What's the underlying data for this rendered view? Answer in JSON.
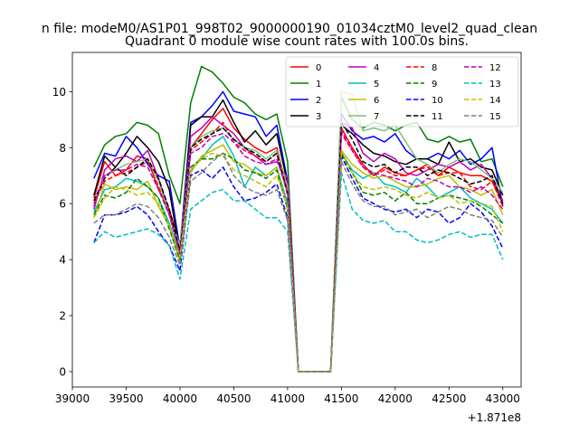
{
  "chart_data": {
    "type": "line",
    "suptitle": "n file: modeM0/AS1P01_998T02_9000000190_01034cztM0_level2_quad_clean",
    "title": "Quadrant 0 module wise count rates with 100.0s bins.",
    "xlabel": "",
    "ylabel": "",
    "offset_text": "+1.871e8",
    "xlim": [
      39000,
      43170
    ],
    "ylim": [
      -0.55,
      11.4
    ],
    "x_ticks": [
      39000,
      39500,
      40000,
      40500,
      41000,
      41500,
      42000,
      42500,
      43000
    ],
    "x_tick_labels": [
      "39000",
      "39500",
      "40000",
      "40500",
      "41000",
      "41500",
      "42000",
      "42500",
      "43000"
    ],
    "y_ticks": [
      0,
      2,
      4,
      6,
      8,
      10
    ],
    "y_tick_labels": [
      "0",
      "2",
      "4",
      "6",
      "8",
      "10"
    ],
    "grid": false,
    "legend_position": "upper-right",
    "legend_columns": 4,
    "x": [
      39200,
      39300,
      39400,
      39500,
      39600,
      39700,
      39800,
      39900,
      40000,
      40100,
      40200,
      40300,
      40400,
      40500,
      40600,
      40700,
      40800,
      40900,
      41000,
      41100,
      41200,
      41300,
      41400,
      41500,
      41600,
      41700,
      41800,
      41900,
      42000,
      42100,
      42200,
      42300,
      42400,
      42500,
      42600,
      42700,
      42800,
      42900,
      43000
    ],
    "series": [
      {
        "name": "0",
        "color": "#ff0000",
        "dash": "solid",
        "values": [
          6.2,
          7.5,
          7.0,
          7.2,
          7.7,
          7.6,
          6.5,
          5.8,
          4.5,
          8.0,
          8.5,
          9.0,
          9.4,
          8.7,
          8.3,
          8.0,
          7.8,
          8.0,
          6.5,
          0,
          0,
          0,
          0,
          8.7,
          8.0,
          7.4,
          7.0,
          7.3,
          7.1,
          7.0,
          7.2,
          7.4,
          7.0,
          7.3,
          7.1,
          7.0,
          7.0,
          6.8,
          6.0
        ]
      },
      {
        "name": "1",
        "color": "#008000",
        "dash": "solid",
        "values": [
          7.3,
          8.1,
          8.4,
          8.5,
          8.9,
          8.8,
          8.5,
          7.0,
          6.0,
          9.6,
          10.9,
          10.7,
          10.3,
          9.8,
          9.6,
          9.2,
          9.0,
          9.2,
          7.5,
          0,
          0,
          0,
          0,
          9.8,
          9.0,
          8.7,
          8.9,
          8.8,
          8.6,
          8.8,
          8.9,
          8.3,
          8.2,
          8.4,
          8.2,
          8.3,
          7.5,
          7.6,
          6.6
        ]
      },
      {
        "name": "2",
        "color": "#0000ff",
        "dash": "solid",
        "values": [
          6.9,
          7.8,
          7.7,
          8.4,
          8.0,
          7.4,
          7.0,
          6.8,
          4.4,
          8.9,
          9.1,
          9.5,
          10.0,
          9.3,
          9.2,
          9.1,
          8.4,
          8.8,
          6.8,
          0,
          0,
          0,
          0,
          9.2,
          8.6,
          8.3,
          8.4,
          8.2,
          8.5,
          7.9,
          7.6,
          7.6,
          7.8,
          7.6,
          7.9,
          7.4,
          7.6,
          8.0,
          5.9
        ]
      },
      {
        "name": "3",
        "color": "#000000",
        "dash": "solid",
        "values": [
          6.3,
          7.7,
          7.3,
          7.8,
          8.4,
          8.0,
          7.5,
          6.5,
          4.2,
          8.8,
          9.1,
          9.1,
          9.7,
          8.9,
          8.2,
          8.6,
          8.1,
          8.5,
          6.7,
          0,
          0,
          0,
          0,
          8.8,
          8.5,
          8.1,
          7.8,
          7.7,
          7.5,
          7.4,
          7.6,
          7.6,
          7.4,
          8.2,
          7.5,
          7.6,
          7.3,
          7.2,
          6.3
        ]
      },
      {
        "name": "4",
        "color": "#bf00bf",
        "dash": "solid",
        "values": [
          5.8,
          7.2,
          7.6,
          7.7,
          7.5,
          7.9,
          6.9,
          5.7,
          4.3,
          8.4,
          8.7,
          9.1,
          8.8,
          8.5,
          8.0,
          7.7,
          7.4,
          7.5,
          6.9,
          0,
          0,
          0,
          0,
          8.9,
          8.7,
          7.8,
          7.5,
          7.8,
          7.6,
          7.1,
          7.0,
          7.2,
          7.4,
          7.3,
          7.5,
          7.2,
          7.4,
          6.9,
          6.1
        ]
      },
      {
        "name": "5",
        "color": "#00bfbf",
        "dash": "solid",
        "values": [
          5.7,
          6.5,
          6.6,
          6.9,
          6.8,
          6.6,
          6.2,
          5.3,
          4.1,
          7.2,
          7.6,
          8.1,
          8.4,
          7.7,
          6.6,
          7.3,
          7.0,
          7.3,
          6.0,
          0,
          0,
          0,
          0,
          7.8,
          7.2,
          6.9,
          7.1,
          6.7,
          6.6,
          6.4,
          6.9,
          6.6,
          6.2,
          6.4,
          6.6,
          6.2,
          6.0,
          5.8,
          5.3
        ]
      },
      {
        "name": "6",
        "color": "#bfbf00",
        "dash": "solid",
        "values": [
          5.5,
          6.7,
          6.5,
          6.6,
          6.5,
          6.8,
          5.9,
          5.2,
          3.9,
          7.1,
          7.7,
          7.9,
          8.1,
          7.5,
          7.4,
          7.1,
          7.0,
          7.3,
          5.8,
          0,
          0,
          0,
          0,
          7.9,
          7.4,
          7.1,
          6.9,
          7.0,
          6.8,
          6.6,
          6.6,
          6.7,
          6.9,
          7.0,
          6.6,
          6.5,
          6.3,
          6.5,
          5.6
        ]
      },
      {
        "name": "7",
        "color": "#80bf80",
        "dash": "solid",
        "values": [
          6.1,
          7.0,
          7.2,
          7.4,
          7.5,
          7.6,
          6.8,
          5.6,
          4.5,
          8.0,
          8.4,
          8.6,
          8.7,
          8.3,
          8.0,
          7.9,
          7.6,
          7.9,
          6.6,
          0,
          0,
          0,
          0,
          10.0,
          9.9,
          8.6,
          8.7,
          8.6,
          8.8,
          8.2,
          7.6,
          7.4,
          7.1,
          7.4,
          7.6,
          7.5,
          7.2,
          6.9,
          6.4
        ]
      },
      {
        "name": "8",
        "color": "#ff0000",
        "dash": "dashed",
        "values": [
          6.0,
          6.8,
          7.0,
          7.1,
          7.3,
          7.5,
          6.6,
          5.6,
          4.2,
          7.9,
          8.2,
          8.5,
          8.9,
          8.2,
          7.9,
          7.7,
          7.5,
          7.8,
          6.3,
          0,
          0,
          0,
          0,
          8.5,
          7.9,
          7.3,
          7.0,
          7.2,
          7.0,
          7.0,
          7.2,
          7.3,
          7.0,
          7.1,
          7.1,
          6.6,
          6.5,
          6.8,
          5.9
        ]
      },
      {
        "name": "9",
        "color": "#008000",
        "dash": "dashed",
        "values": [
          5.6,
          6.3,
          6.2,
          6.4,
          6.9,
          6.6,
          6.2,
          5.1,
          4.0,
          7.3,
          7.6,
          7.6,
          7.8,
          7.6,
          7.2,
          7.1,
          6.9,
          7.2,
          5.8,
          0,
          0,
          0,
          0,
          7.8,
          7.1,
          6.4,
          6.3,
          6.4,
          6.1,
          6.4,
          6.0,
          6.0,
          6.2,
          6.3,
          6.2,
          6.1,
          5.9,
          5.6,
          5.3
        ]
      },
      {
        "name": "10",
        "color": "#0000ff",
        "dash": "dashed",
        "values": [
          4.6,
          5.6,
          5.6,
          5.7,
          5.9,
          5.6,
          5.0,
          4.5,
          3.6,
          7.0,
          7.2,
          6.9,
          7.3,
          6.6,
          6.1,
          6.2,
          6.4,
          6.7,
          5.5,
          0,
          0,
          0,
          0,
          7.7,
          6.9,
          6.2,
          6.0,
          5.8,
          5.7,
          5.8,
          5.5,
          5.8,
          5.7,
          5.3,
          5.5,
          6.0,
          5.7,
          5.2,
          4.4
        ]
      },
      {
        "name": "11",
        "color": "#000000",
        "dash": "dashed",
        "values": [
          6.1,
          6.9,
          7.3,
          7.0,
          7.3,
          7.6,
          6.9,
          5.8,
          4.3,
          8.0,
          8.3,
          8.5,
          8.7,
          8.3,
          8.0,
          7.8,
          7.5,
          7.8,
          6.4,
          0,
          0,
          0,
          0,
          8.9,
          8.3,
          7.5,
          7.3,
          7.4,
          7.1,
          7.3,
          7.3,
          7.0,
          7.2,
          7.1,
          6.9,
          6.7,
          6.8,
          7.0,
          6.0
        ]
      },
      {
        "name": "12",
        "color": "#bf00bf",
        "dash": "dashed",
        "values": [
          5.9,
          7.0,
          7.2,
          7.2,
          7.4,
          7.3,
          6.5,
          5.6,
          4.2,
          7.8,
          8.0,
          8.4,
          8.5,
          8.2,
          7.7,
          7.5,
          7.4,
          7.6,
          6.4,
          0,
          0,
          0,
          0,
          8.6,
          7.9,
          7.3,
          7.1,
          7.0,
          6.9,
          6.8,
          6.6,
          6.9,
          6.8,
          6.6,
          6.6,
          6.4,
          6.6,
          6.3,
          5.8
        ]
      },
      {
        "name": "13",
        "color": "#00bfbf",
        "dash": "dashed",
        "values": [
          4.6,
          5.0,
          4.8,
          4.9,
          5.0,
          5.1,
          4.9,
          4.5,
          3.3,
          5.8,
          6.1,
          6.4,
          6.5,
          6.1,
          6.1,
          5.8,
          5.5,
          5.5,
          5.0,
          0,
          0,
          0,
          0,
          7.1,
          5.8,
          5.4,
          5.3,
          5.4,
          5.0,
          5.0,
          4.7,
          4.6,
          4.7,
          4.9,
          5.0,
          4.8,
          4.9,
          4.9,
          4.0
        ]
      },
      {
        "name": "14",
        "color": "#bfbf00",
        "dash": "dashed",
        "values": [
          5.5,
          6.2,
          6.6,
          6.5,
          6.3,
          6.4,
          6.0,
          5.2,
          4.1,
          7.2,
          7.6,
          7.8,
          7.7,
          7.2,
          7.0,
          6.8,
          6.6,
          7.0,
          5.9,
          0,
          0,
          0,
          0,
          7.9,
          7.1,
          6.6,
          6.5,
          6.6,
          6.5,
          6.3,
          6.2,
          6.4,
          6.2,
          6.3,
          6.0,
          6.1,
          6.0,
          5.9,
          5.0
        ]
      },
      {
        "name": "15",
        "color": "#808080",
        "dash": "dashed",
        "values": [
          5.3,
          5.6,
          5.6,
          5.8,
          6.0,
          5.9,
          5.5,
          4.8,
          3.8,
          6.8,
          7.1,
          7.5,
          7.8,
          7.0,
          6.6,
          6.4,
          6.3,
          6.5,
          5.4,
          0,
          0,
          0,
          0,
          7.5,
          6.7,
          6.1,
          5.9,
          5.9,
          5.6,
          5.7,
          5.8,
          5.5,
          5.7,
          5.9,
          5.8,
          5.6,
          5.5,
          5.4,
          4.8
        ]
      }
    ]
  }
}
